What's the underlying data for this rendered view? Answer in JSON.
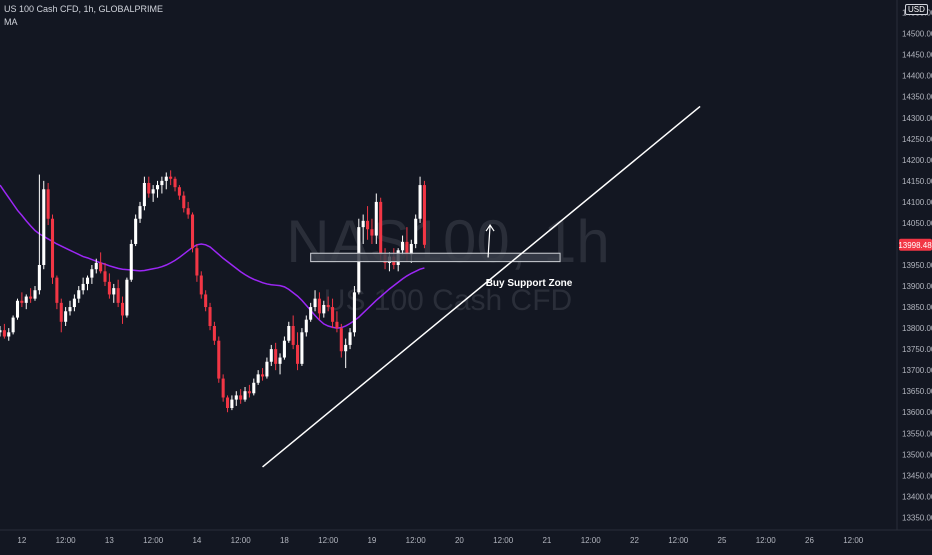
{
  "header": {
    "symbol_line": "US 100 Cash CFD, 1h, GLOBALPRIME",
    "indicator": "MA"
  },
  "watermark": {
    "symbol": "NAS100, 1h",
    "description": "US 100 Cash CFD"
  },
  "currency_badge": "USD",
  "last_price_label": "13998.48",
  "colors": {
    "background": "#131722",
    "up": "#ffffff",
    "down": "#f23645",
    "ma": "#9c27f5",
    "trendline": "#ffffff",
    "zone_fill": "#3a3e4a",
    "zone_border": "#cfd2d8",
    "axis_text": "#b2b5be",
    "last_price_bg": "#f23645"
  },
  "annotation": {
    "zone_label": "Buy Support Zone"
  },
  "chart_data": {
    "type": "candlestick",
    "title": "",
    "y_axis": {
      "position": "right",
      "ylim": [
        13320,
        14580
      ],
      "ticks": [
        14550,
        14500,
        14450,
        14400,
        14350,
        14300,
        14250,
        14200,
        14150,
        14100,
        14050,
        14000,
        13950,
        13900,
        13850,
        13800,
        13750,
        13700,
        13650,
        13600,
        13550,
        13500,
        13450,
        13400,
        13350
      ],
      "tick_labels": [
        "14550.00",
        "14500.00",
        "14450.00",
        "14400.00",
        "14350.00",
        "14300.00",
        "14250.00",
        "14200.00",
        "14150.00",
        "14100.00",
        "14050.00",
        "14000.00",
        "13950.00",
        "13900.00",
        "13850.00",
        "13800.00",
        "13750.00",
        "13700.00",
        "13650.00",
        "13600.00",
        "13550.00",
        "13500.00",
        "13450.00",
        "13400.00",
        "13350.00"
      ]
    },
    "x_axis": {
      "units": "bars (1h)",
      "xlim": [
        0,
        205
      ],
      "tick_positions": [
        5,
        15,
        25,
        35,
        45,
        55,
        65,
        75,
        85,
        95,
        105,
        115,
        125,
        135,
        145,
        155,
        165,
        175,
        185,
        195
      ],
      "tick_labels": [
        "12",
        "12:00",
        "13",
        "12:00",
        "14",
        "12:00",
        "18",
        "12:00",
        "19",
        "12:00",
        "20",
        "12:00",
        "21",
        "12:00",
        "22",
        "12:00",
        "25",
        "12:00",
        "26",
        "12:00"
      ]
    },
    "candles": [
      [
        13790,
        13805,
        13780,
        13795
      ],
      [
        13795,
        13810,
        13775,
        13780
      ],
      [
        13780,
        13800,
        13770,
        13790
      ],
      [
        13790,
        13830,
        13785,
        13825
      ],
      [
        13825,
        13870,
        13820,
        13865
      ],
      [
        13865,
        13885,
        13850,
        13860
      ],
      [
        13860,
        13880,
        13845,
        13875
      ],
      [
        13875,
        13895,
        13860,
        13870
      ],
      [
        13870,
        13900,
        13865,
        13890
      ],
      [
        13890,
        14165,
        13880,
        13950
      ],
      [
        13950,
        14150,
        13940,
        14130
      ],
      [
        14130,
        14145,
        14045,
        14060
      ],
      [
        14060,
        14070,
        13905,
        13920
      ],
      [
        13920,
        13925,
        13845,
        13860
      ],
      [
        13860,
        13870,
        13790,
        13815
      ],
      [
        13815,
        13850,
        13805,
        13840
      ],
      [
        13840,
        13865,
        13830,
        13850
      ],
      [
        13850,
        13880,
        13840,
        13870
      ],
      [
        13870,
        13900,
        13860,
        13890
      ],
      [
        13890,
        13920,
        13880,
        13905
      ],
      [
        13905,
        13925,
        13890,
        13920
      ],
      [
        13920,
        13950,
        13905,
        13940
      ],
      [
        13940,
        13965,
        13930,
        13955
      ],
      [
        13955,
        13980,
        13930,
        13935
      ],
      [
        13935,
        13955,
        13900,
        13910
      ],
      [
        13910,
        13930,
        13870,
        13880
      ],
      [
        13880,
        13905,
        13860,
        13895
      ],
      [
        13895,
        13915,
        13850,
        13860
      ],
      [
        13860,
        13875,
        13810,
        13830
      ],
      [
        13830,
        13920,
        13825,
        13915
      ],
      [
        13915,
        14010,
        13910,
        14000
      ],
      [
        14000,
        14070,
        13995,
        14060
      ],
      [
        14060,
        14100,
        14050,
        14090
      ],
      [
        14090,
        14160,
        14080,
        14145
      ],
      [
        14145,
        14160,
        14110,
        14120
      ],
      [
        14120,
        14140,
        14100,
        14130
      ],
      [
        14130,
        14150,
        14110,
        14140
      ],
      [
        14140,
        14160,
        14120,
        14150
      ],
      [
        14150,
        14170,
        14130,
        14160
      ],
      [
        14160,
        14175,
        14140,
        14155
      ],
      [
        14155,
        14160,
        14125,
        14135
      ],
      [
        14135,
        14140,
        14105,
        14115
      ],
      [
        14115,
        14125,
        14075,
        14085
      ],
      [
        14085,
        14100,
        14060,
        14070
      ],
      [
        14070,
        14075,
        13980,
        13990
      ],
      [
        13990,
        14000,
        13910,
        13925
      ],
      [
        13925,
        13935,
        13870,
        13880
      ],
      [
        13880,
        13890,
        13840,
        13850
      ],
      [
        13850,
        13860,
        13795,
        13805
      ],
      [
        13805,
        13815,
        13760,
        13770
      ],
      [
        13770,
        13780,
        13670,
        13680
      ],
      [
        13680,
        13690,
        13625,
        13635
      ],
      [
        13635,
        13640,
        13600,
        13610
      ],
      [
        13610,
        13640,
        13605,
        13630
      ],
      [
        13630,
        13650,
        13615,
        13640
      ],
      [
        13640,
        13655,
        13620,
        13630
      ],
      [
        13630,
        13660,
        13625,
        13650
      ],
      [
        13650,
        13665,
        13635,
        13645
      ],
      [
        13645,
        13680,
        13640,
        13670
      ],
      [
        13670,
        13700,
        13665,
        13690
      ],
      [
        13690,
        13705,
        13675,
        13685
      ],
      [
        13685,
        13730,
        13680,
        13720
      ],
      [
        13720,
        13760,
        13710,
        13750
      ],
      [
        13750,
        13765,
        13700,
        13715
      ],
      [
        13715,
        13740,
        13690,
        13730
      ],
      [
        13730,
        13780,
        13725,
        13770
      ],
      [
        13770,
        13815,
        13765,
        13805
      ],
      [
        13805,
        13830,
        13750,
        13760
      ],
      [
        13760,
        13790,
        13700,
        13715
      ],
      [
        13715,
        13800,
        13710,
        13790
      ],
      [
        13790,
        13830,
        13780,
        13820
      ],
      [
        13820,
        13860,
        13815,
        13850
      ],
      [
        13850,
        13890,
        13840,
        13870
      ],
      [
        13870,
        13885,
        13820,
        13835
      ],
      [
        13835,
        13865,
        13825,
        13855
      ],
      [
        13855,
        13875,
        13840,
        13850
      ],
      [
        13850,
        13870,
        13800,
        13815
      ],
      [
        13815,
        13840,
        13790,
        13800
      ],
      [
        13800,
        13810,
        13730,
        13745
      ],
      [
        13745,
        13775,
        13705,
        13760
      ],
      [
        13760,
        13800,
        13750,
        13790
      ],
      [
        13790,
        13900,
        13780,
        13885
      ],
      [
        13885,
        14060,
        13880,
        14040
      ],
      [
        14040,
        14070,
        14000,
        14055
      ],
      [
        14055,
        14090,
        14010,
        14035
      ],
      [
        14035,
        14060,
        14000,
        14020
      ],
      [
        14020,
        14120,
        14000,
        14100
      ],
      [
        14100,
        14110,
        13960,
        13975
      ],
      [
        13975,
        13990,
        13940,
        13955
      ],
      [
        13955,
        13980,
        13935,
        13970
      ],
      [
        13970,
        13990,
        13940,
        13950
      ],
      [
        13950,
        13990,
        13935,
        13985
      ],
      [
        13985,
        14020,
        13975,
        14005
      ],
      [
        14005,
        14040,
        13960,
        13975
      ],
      [
        13975,
        14010,
        13955,
        14000
      ],
      [
        14000,
        14070,
        13990,
        14060
      ],
      [
        14060,
        14160,
        14050,
        14140
      ],
      [
        14140,
        14150,
        13990,
        13998
      ]
    ],
    "series": [
      {
        "name": "MA",
        "values": [
          14140,
          14125,
          14110,
          14095,
          14080,
          14068,
          14055,
          14043,
          14032,
          14024,
          14018,
          14012,
          14006,
          14000,
          13995,
          13990,
          13985,
          13980,
          13975,
          13970,
          13967,
          13963,
          13959,
          13955,
          13952,
          13948,
          13945,
          13942,
          13940,
          13939,
          13938,
          13937,
          13936,
          13937,
          13939,
          13941,
          13943,
          13946,
          13950,
          13955,
          13961,
          13968,
          13976,
          13984,
          13992,
          13998,
          14000,
          13998,
          13993,
          13984,
          13975,
          13966,
          13958,
          13950,
          13942,
          13934,
          13927,
          13921,
          13916,
          13912,
          13908,
          13905,
          13903,
          13902,
          13901,
          13898,
          13892,
          13884,
          13876,
          13866,
          13854,
          13842,
          13830,
          13819,
          13810,
          13805,
          13802,
          13800,
          13801,
          13805,
          13811,
          13818,
          13826,
          13836,
          13846,
          13856,
          13866,
          13875,
          13884,
          13893,
          13901,
          13909,
          13917,
          13924,
          13930,
          13935,
          13940,
          13943
        ]
      }
    ],
    "annotations": {
      "support_zone": {
        "y_low": 13958,
        "y_high": 13978,
        "x_start": 71,
        "x_end": 128
      },
      "trendline": {
        "x1": 60,
        "y1": 13470,
        "x2": 160,
        "y2": 14327
      },
      "arrow": {
        "x": 112,
        "y_from": 13968,
        "y_to": 14045
      },
      "zone_label_at": {
        "x": 111,
        "y": 13900
      }
    },
    "grid": false,
    "legend": "none"
  }
}
